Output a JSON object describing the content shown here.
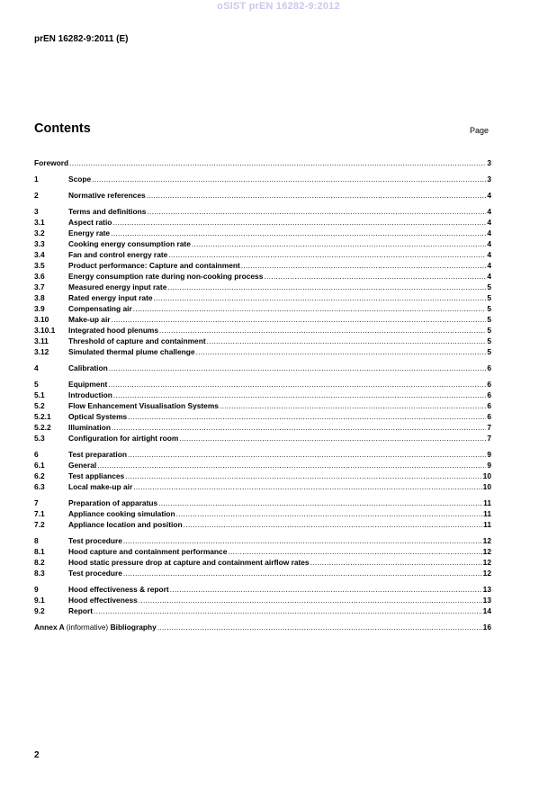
{
  "watermark": "oSIST prEN 16282-9:2012",
  "header": {
    "doc_id": "prEN 16282-9:2011 (E)"
  },
  "contents": {
    "title": "Contents",
    "page_label": "Page"
  },
  "toc": [
    [
      {
        "num": "",
        "title": "Foreword",
        "page": "3"
      }
    ],
    [
      {
        "num": "1",
        "title": "Scope",
        "page": "3"
      }
    ],
    [
      {
        "num": "2",
        "title": "Normative references",
        "page": "4"
      }
    ],
    [
      {
        "num": "3",
        "title": "Terms and definitions",
        "page": "4"
      },
      {
        "num": "3.1",
        "title": "Aspect ratio",
        "page": "4"
      },
      {
        "num": "3.2",
        "title": "Energy rate",
        "page": "4"
      },
      {
        "num": "3.3",
        "title": "Cooking energy consumption rate",
        "page": "4"
      },
      {
        "num": "3.4",
        "title": "Fan and control energy rate",
        "page": "4"
      },
      {
        "num": "3.5",
        "title": "Product performance: Capture and containment",
        "page": "4"
      },
      {
        "num": "3.6",
        "title": "Energy consumption rate during non-cooking process",
        "page": "4"
      },
      {
        "num": "3.7",
        "title": "Measured energy input rate",
        "page": "5"
      },
      {
        "num": "3.8",
        "title": "Rated energy input rate",
        "page": "5"
      },
      {
        "num": "3.9",
        "title": "Compensating air",
        "page": "5"
      },
      {
        "num": "3.10",
        "title": "Make-up air",
        "page": "5"
      },
      {
        "num": "3.10.1",
        "title": "Integrated hood plenums",
        "page": "5"
      },
      {
        "num": "3.11",
        "title": "Threshold of capture and containment",
        "page": "5"
      },
      {
        "num": "3.12",
        "title": "Simulated thermal plume challenge",
        "page": "5"
      }
    ],
    [
      {
        "num": "4",
        "title": "Calibration",
        "page": "6"
      }
    ],
    [
      {
        "num": "5",
        "title": "Equipment",
        "page": "6"
      },
      {
        "num": "5.1",
        "title": "Introduction",
        "page": "6"
      },
      {
        "num": "5.2",
        "title": "Flow Enhancement Visualisation Systems",
        "page": "6"
      },
      {
        "num": "5.2.1",
        "title": "Optical Systems",
        "page": "6"
      },
      {
        "num": "5.2.2",
        "title": "Illumination",
        "page": "7"
      },
      {
        "num": "5.3",
        "title": "Configuration for airtight room",
        "page": "7"
      }
    ],
    [
      {
        "num": "6",
        "title": "Test preparation",
        "page": "9"
      },
      {
        "num": "6.1",
        "title": "General",
        "page": "9"
      },
      {
        "num": "6.2",
        "title": "Test appliances",
        "page": "10"
      },
      {
        "num": "6.3",
        "title": "Local make-up air",
        "page": "10"
      }
    ],
    [
      {
        "num": "7",
        "title": "Preparation of apparatus",
        "page": "11"
      },
      {
        "num": "7.1",
        "title": "Appliance cooking simulation",
        "page": "11"
      },
      {
        "num": "7.2",
        "title": "Appliance location and position",
        "page": "11"
      }
    ],
    [
      {
        "num": "8",
        "title": "Test procedure",
        "page": "12"
      },
      {
        "num": "8.1",
        "title": "Hood capture and containment performance",
        "page": "12"
      },
      {
        "num": "8.2",
        "title": "Hood static pressure drop at capture and containment airflow rates",
        "page": "12"
      },
      {
        "num": "8.3",
        "title": "Test procedure",
        "page": "12"
      }
    ],
    [
      {
        "num": "9",
        "title": "Hood effectiveness & report",
        "page": "13"
      },
      {
        "num": "9.1",
        "title": "Hood effectiveness",
        "page": "13"
      },
      {
        "num": "9.2",
        "title": "Report",
        "page": "14"
      }
    ]
  ],
  "annex": {
    "label": "Annex A",
    "qualifier": "(informative)",
    "title": "Bibliography",
    "page": "16"
  },
  "footer": {
    "page_number": "2"
  }
}
